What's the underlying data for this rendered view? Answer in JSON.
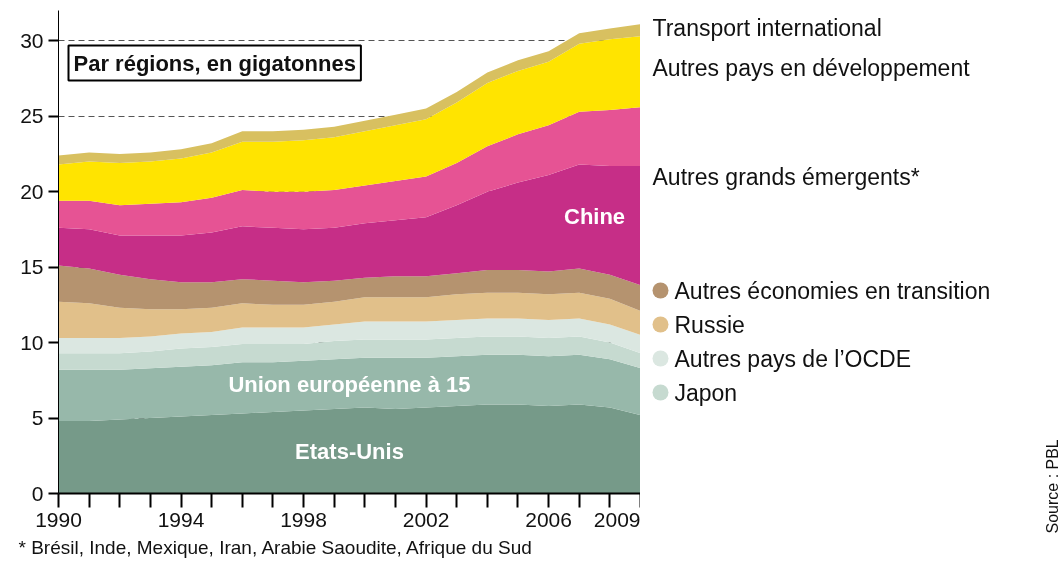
{
  "chart_data": {
    "type": "area",
    "stacked": true,
    "title": "Par régions, en gigatonnes",
    "annotations": [
      "* Brésil, Inde, Mexique, Iran, Arabie Saoudite, Afrique du Sud",
      "Source : PBL"
    ],
    "x": [
      1990,
      1991,
      1992,
      1993,
      1994,
      1995,
      1996,
      1997,
      1998,
      1999,
      2000,
      2001,
      2002,
      2003,
      2004,
      2005,
      2006,
      2007,
      2008,
      2009
    ],
    "series": [
      {
        "name": "Etats-Unis",
        "color": "#769a89",
        "values": [
          4.8,
          4.8,
          4.9,
          5.0,
          5.1,
          5.2,
          5.3,
          5.4,
          5.5,
          5.6,
          5.7,
          5.6,
          5.7,
          5.8,
          5.9,
          5.9,
          5.8,
          5.9,
          5.7,
          5.2
        ]
      },
      {
        "name": "Union européenne à 15",
        "color": "#97b8aa",
        "values": [
          3.4,
          3.4,
          3.3,
          3.3,
          3.3,
          3.3,
          3.4,
          3.3,
          3.3,
          3.3,
          3.3,
          3.4,
          3.3,
          3.3,
          3.3,
          3.3,
          3.3,
          3.3,
          3.2,
          3.1
        ]
      },
      {
        "name": "Japon",
        "color": "#c6dad0",
        "values": [
          1.1,
          1.1,
          1.1,
          1.1,
          1.2,
          1.2,
          1.2,
          1.2,
          1.1,
          1.2,
          1.2,
          1.2,
          1.2,
          1.2,
          1.2,
          1.2,
          1.2,
          1.2,
          1.1,
          1.0
        ]
      },
      {
        "name": "Autres pays de l’OCDE",
        "color": "#dbe7e1",
        "values": [
          1.0,
          1.0,
          1.0,
          1.0,
          1.0,
          1.0,
          1.1,
          1.1,
          1.1,
          1.1,
          1.2,
          1.2,
          1.2,
          1.2,
          1.2,
          1.2,
          1.2,
          1.2,
          1.2,
          1.2
        ]
      },
      {
        "name": "Russie",
        "color": "#e1c08a",
        "values": [
          2.4,
          2.3,
          2.0,
          1.8,
          1.6,
          1.6,
          1.6,
          1.5,
          1.5,
          1.5,
          1.6,
          1.6,
          1.6,
          1.7,
          1.7,
          1.7,
          1.7,
          1.7,
          1.7,
          1.6
        ]
      },
      {
        "name": "Autres économies en transition",
        "color": "#b5936f",
        "values": [
          2.4,
          2.3,
          2.2,
          2.0,
          1.8,
          1.7,
          1.6,
          1.6,
          1.5,
          1.4,
          1.3,
          1.4,
          1.4,
          1.4,
          1.5,
          1.5,
          1.5,
          1.6,
          1.6,
          1.7
        ]
      },
      {
        "name": "Chine",
        "color": "#c62e87",
        "values": [
          2.5,
          2.6,
          2.6,
          2.9,
          3.1,
          3.3,
          3.5,
          3.5,
          3.5,
          3.5,
          3.6,
          3.7,
          3.9,
          4.5,
          5.2,
          5.8,
          6.4,
          6.9,
          7.2,
          7.9
        ]
      },
      {
        "name": "Autres grands émergents*",
        "color": "#e65394",
        "values": [
          1.8,
          1.9,
          2.0,
          2.1,
          2.2,
          2.3,
          2.4,
          2.4,
          2.5,
          2.5,
          2.5,
          2.6,
          2.7,
          2.8,
          3.0,
          3.2,
          3.3,
          3.5,
          3.7,
          3.9
        ]
      },
      {
        "name": "Autres pays en développement",
        "color": "#ffe400",
        "values": [
          2.4,
          2.6,
          2.8,
          2.8,
          2.9,
          3.0,
          3.2,
          3.3,
          3.4,
          3.5,
          3.6,
          3.7,
          3.8,
          4.0,
          4.2,
          4.2,
          4.2,
          4.5,
          4.7,
          4.7
        ]
      },
      {
        "name": "Transport international",
        "color": "#d8c060",
        "values": [
          0.6,
          0.6,
          0.6,
          0.6,
          0.6,
          0.6,
          0.7,
          0.7,
          0.7,
          0.7,
          0.7,
          0.7,
          0.7,
          0.7,
          0.7,
          0.7,
          0.7,
          0.7,
          0.7,
          0.8
        ]
      }
    ],
    "xlim": [
      1990,
      2009
    ],
    "ylim": [
      0,
      32
    ],
    "xticks": [
      1990,
      {
        "value": 1991,
        "label": null
      },
      {
        "value": 1992,
        "label": null
      },
      {
        "value": 1993,
        "label": null
      },
      1994,
      {
        "value": 1995,
        "label": null
      },
      {
        "value": 1996,
        "label": null
      },
      {
        "value": 1997,
        "label": null
      },
      1998,
      {
        "value": 1999,
        "label": null
      },
      {
        "value": 2000,
        "label": null
      },
      {
        "value": 2001,
        "label": null
      },
      2002,
      {
        "value": 2003,
        "label": null
      },
      {
        "value": 2004,
        "label": null
      },
      {
        "value": 2005,
        "label": null
      },
      2006,
      {
        "value": 2007,
        "label": null
      },
      {
        "value": 2008,
        "label": null
      },
      2009
    ],
    "yticks": [
      0,
      5,
      10,
      15,
      20,
      25,
      30
    ],
    "grid": "y",
    "legend": "right"
  }
}
